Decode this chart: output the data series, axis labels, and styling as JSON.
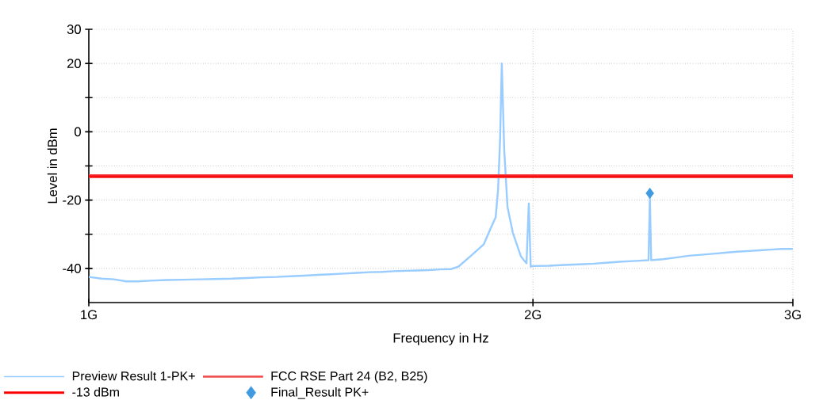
{
  "chart_data": {
    "type": "line",
    "xlabel": "Frequency in Hz",
    "ylabel": "Level in dBm",
    "log": "x",
    "grid": true,
    "legend": "bottom",
    "xlim": [
      1,
      3
    ],
    "ylim": [
      -50,
      30
    ],
    "xticks": [
      {
        "value": 1,
        "label": "1G"
      },
      {
        "value": 2,
        "label": "2G"
      },
      {
        "value": 3,
        "label": "3G"
      }
    ],
    "yticks": [
      {
        "value": -40,
        "label": "-40"
      },
      {
        "value": -30,
        "label": null
      },
      {
        "value": -20,
        "label": "-20"
      },
      {
        "value": -10,
        "label": null
      },
      {
        "value": 0,
        "label": "0"
      },
      {
        "value": 10,
        "label": null
      },
      {
        "value": 20,
        "label": "20"
      },
      {
        "value": 30,
        "label": "30"
      }
    ],
    "series": [
      {
        "name": "Preview Result 1-PK+",
        "color": "#99ccff",
        "marker": "none",
        "x": [
          1.0,
          1.02,
          1.04,
          1.06,
          1.08,
          1.1,
          1.13,
          1.16,
          1.19,
          1.22,
          1.25,
          1.28,
          1.31,
          1.34,
          1.37,
          1.4,
          1.43,
          1.46,
          1.49,
          1.52,
          1.55,
          1.58,
          1.61,
          1.64,
          1.67,
          1.7,
          1.73,
          1.76,
          1.78,
          1.813,
          1.852,
          1.87,
          1.887,
          1.894,
          1.9,
          1.905,
          1.912,
          1.922,
          1.938,
          1.963,
          1.98,
          1.987,
          1.993,
          2.0,
          2.05,
          2.1,
          2.15,
          2.2,
          2.25,
          2.3,
          2.35,
          2.395,
          2.4,
          2.405,
          2.45,
          2.5,
          2.55,
          2.6,
          2.65,
          2.7,
          2.75,
          2.8,
          2.85,
          2.9,
          2.95,
          3.0
        ],
        "values": [
          -42.5,
          -43,
          -43.2,
          -43.8,
          -43.8,
          -43.6,
          -43.4,
          -43.3,
          -43.2,
          -43.1,
          -43,
          -42.8,
          -42.6,
          -42.5,
          -42.3,
          -42.1,
          -41.9,
          -41.7,
          -41.5,
          -41.3,
          -41.1,
          -41,
          -40.8,
          -40.7,
          -40.6,
          -40.5,
          -40.3,
          -40.2,
          -39.5,
          -36.5,
          -33,
          -28.8,
          -25,
          -17,
          -2,
          20,
          -5,
          -22,
          -29.5,
          -36.5,
          -38.5,
          -21,
          -39.5,
          -39.3,
          -39.2,
          -39,
          -38.8,
          -38.6,
          -38.3,
          -38,
          -37.8,
          -37.6,
          -19,
          -37.6,
          -37.3,
          -36.8,
          -36.3,
          -36,
          -35.7,
          -35.4,
          -35.1,
          -34.9,
          -34.7,
          -34.5,
          -34.3,
          -34.3
        ]
      },
      {
        "name": "Final_Result PK+",
        "color": "#3f9ae0",
        "type": "scatter",
        "marker": "diamond",
        "x": [
          2.4
        ],
        "values": [
          -18
        ]
      }
    ],
    "ref_lines": [
      {
        "axis": "y",
        "value": -13,
        "label": "FCC RSE Part 24 (B2, B25)",
        "color": "#f04848"
      },
      {
        "axis": "y",
        "value": -13,
        "label": "-13 dBm",
        "color": "#ff0000"
      }
    ]
  }
}
